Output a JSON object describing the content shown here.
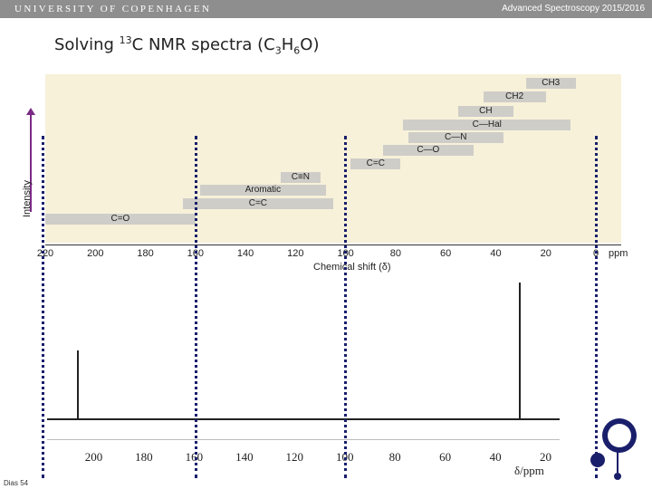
{
  "header": {
    "university": "UNIVERSITY OF COPENHAGEN",
    "course": "Advanced Spectroscopy 2015/2016"
  },
  "slide": {
    "title_prefix": "Solving ",
    "title_sup": "13",
    "title_mid": "C NMR spectra (C",
    "title_sub1": "3",
    "title_h": "H",
    "title_sub2": "6",
    "title_end": "O)",
    "footer": "Dias 54"
  },
  "chart_data": [
    {
      "type": "bar",
      "title": "",
      "xlabel": "Chemical shift (δ)",
      "ylabel": "Intensity",
      "x_unit": "ppm",
      "x_ticks": [
        "220",
        "200",
        "180",
        "160",
        "140",
        "120",
        "100",
        "80",
        "60",
        "40",
        "20",
        "0"
      ],
      "xlim": [
        220,
        0
      ],
      "ranges": [
        {
          "label": "CH3",
          "from": 28,
          "to": 8
        },
        {
          "label": "CH2",
          "from": 45,
          "to": 20
        },
        {
          "label": "CH",
          "from": 55,
          "to": 33
        },
        {
          "label": "C—Hal",
          "from": 77,
          "to": 10
        },
        {
          "label": "C—N",
          "from": 75,
          "to": 37
        },
        {
          "label": "C—O",
          "from": 85,
          "to": 49
        },
        {
          "label": "C=C",
          "from": 98,
          "to": 78
        },
        {
          "label": "C≡N",
          "from": 126,
          "to": 110
        },
        {
          "label": "Aromatic",
          "from": 158,
          "to": 108
        },
        {
          "label": "C=C",
          "from": 165,
          "to": 105
        },
        {
          "label": "C=O",
          "from": 220,
          "to": 160
        }
      ]
    },
    {
      "type": "line",
      "title": "",
      "xlabel": "δ/ppm",
      "ylabel": "",
      "x_ticks": [
        "200",
        "180",
        "160",
        "140",
        "120",
        "100",
        "80",
        "60",
        "40",
        "20"
      ],
      "xlim": [
        220,
        10
      ],
      "peaks": [
        {
          "x": 206.5,
          "intensity": 0.5
        },
        {
          "x": 30.5,
          "intensity": 1.0
        }
      ]
    }
  ]
}
